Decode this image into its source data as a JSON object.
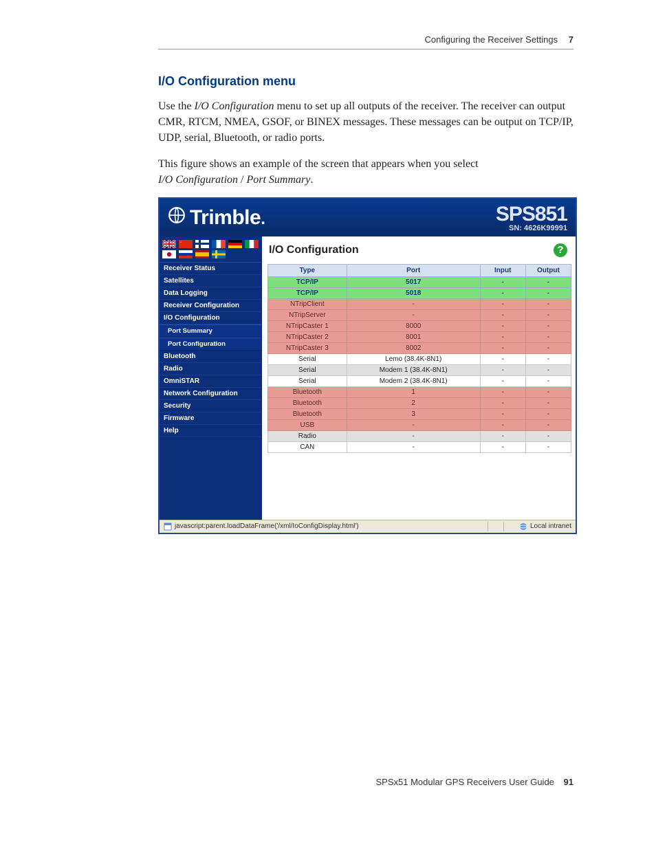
{
  "header": {
    "running_title": "Configuring the Receiver Settings",
    "chapter_number": "7"
  },
  "section": {
    "heading": "I/O Configuration menu",
    "para1_a": "Use the ",
    "para1_em": "I/O Configuration",
    "para1_b": " menu to set up all outputs of the receiver. The receiver can output CMR, RTCM, NMEA, GSOF, or BINEX messages. These messages can be output on TCP/IP, UDP, serial, Bluetooth, or radio ports.",
    "para2_a": "This figure shows an example of the screen that appears when you select ",
    "para2_em1": "I/O Configuration",
    "para2_sep": " / ",
    "para2_em2": "Port Summary",
    "para2_end": "."
  },
  "figure": {
    "brand": "Trimble",
    "model": "SPS851",
    "serial_label": "SN: 4626K99991",
    "content_title": "I/O Configuration",
    "sidebar": [
      {
        "label": "Receiver Status",
        "sub": false
      },
      {
        "label": "Satellites",
        "sub": false
      },
      {
        "label": "Data Logging",
        "sub": false
      },
      {
        "label": "Receiver Configuration",
        "sub": false
      },
      {
        "label": "I/O Configuration",
        "sub": false
      },
      {
        "label": "Port Summary",
        "sub": true
      },
      {
        "label": "Port Configuration",
        "sub": true
      },
      {
        "label": "Bluetooth",
        "sub": false
      },
      {
        "label": "Radio",
        "sub": false
      },
      {
        "label": "OmniSTAR",
        "sub": false
      },
      {
        "label": "Network Configuration",
        "sub": false
      },
      {
        "label": "Security",
        "sub": false
      },
      {
        "label": "Firmware",
        "sub": false
      },
      {
        "label": "Help",
        "sub": false
      }
    ],
    "table": {
      "headers": {
        "type": "Type",
        "port": "Port",
        "input": "Input",
        "output": "Output"
      },
      "rows": [
        {
          "type": "TCP/IP",
          "port": "5017",
          "input": "-",
          "output": "-",
          "cls": "row-green",
          "link": true
        },
        {
          "type": "TCP/IP",
          "port": "5018",
          "input": "-",
          "output": "-",
          "cls": "row-green",
          "link": true
        },
        {
          "type": "NTripClient",
          "port": "-",
          "input": "-",
          "output": "-",
          "cls": "row-pink",
          "link": false
        },
        {
          "type": "NTripServer",
          "port": "-",
          "input": "-",
          "output": "-",
          "cls": "row-pink",
          "link": false
        },
        {
          "type": "NTripCaster 1",
          "port": "8000",
          "input": "-",
          "output": "-",
          "cls": "row-pink",
          "link": false
        },
        {
          "type": "NTripCaster 2",
          "port": "8001",
          "input": "-",
          "output": "-",
          "cls": "row-pink",
          "link": false
        },
        {
          "type": "NTripCaster 3",
          "port": "8002",
          "input": "-",
          "output": "-",
          "cls": "row-pink",
          "link": false
        },
        {
          "type": "Serial",
          "port": "Lemo (38.4K-8N1)",
          "input": "-",
          "output": "-",
          "cls": "row-white",
          "link": false
        },
        {
          "type": "Serial",
          "port": "Modem 1 (38.4K-8N1)",
          "input": "-",
          "output": "-",
          "cls": "row-gray",
          "link": false
        },
        {
          "type": "Serial",
          "port": "Modem 2 (38.4K-8N1)",
          "input": "-",
          "output": "-",
          "cls": "row-white",
          "link": false
        },
        {
          "type": "Bluetooth",
          "port": "1",
          "input": "-",
          "output": "-",
          "cls": "row-pink",
          "link": false
        },
        {
          "type": "Bluetooth",
          "port": "2",
          "input": "-",
          "output": "-",
          "cls": "row-pink",
          "link": false
        },
        {
          "type": "Bluetooth",
          "port": "3",
          "input": "-",
          "output": "-",
          "cls": "row-pink",
          "link": false
        },
        {
          "type": "USB",
          "port": "-",
          "input": "-",
          "output": "-",
          "cls": "row-pink",
          "link": false
        },
        {
          "type": "Radio",
          "port": "-",
          "input": "-",
          "output": "-",
          "cls": "row-gray",
          "link": false
        },
        {
          "type": "CAN",
          "port": "-",
          "input": "-",
          "output": "-",
          "cls": "row-white",
          "link": false
        }
      ]
    },
    "statusbar": {
      "url": "javascript:parent.loadDataFrame('/xml/IoConfigDisplay.html')",
      "zone": "Local intranet"
    }
  },
  "footer": {
    "guide": "SPSx51 Modular GPS Receivers User Guide",
    "page": "91"
  },
  "colors": {
    "brand_blue": "#003a8a",
    "header_grad_top": "#083b8f",
    "header_grad_bot": "#0a2a6a",
    "sidebar_bg": "#0b2f7a",
    "row_green": "#7de07a",
    "row_pink": "#e89a95",
    "row_gray": "#e0e0e0",
    "th_bg": "#d7e0ef"
  }
}
